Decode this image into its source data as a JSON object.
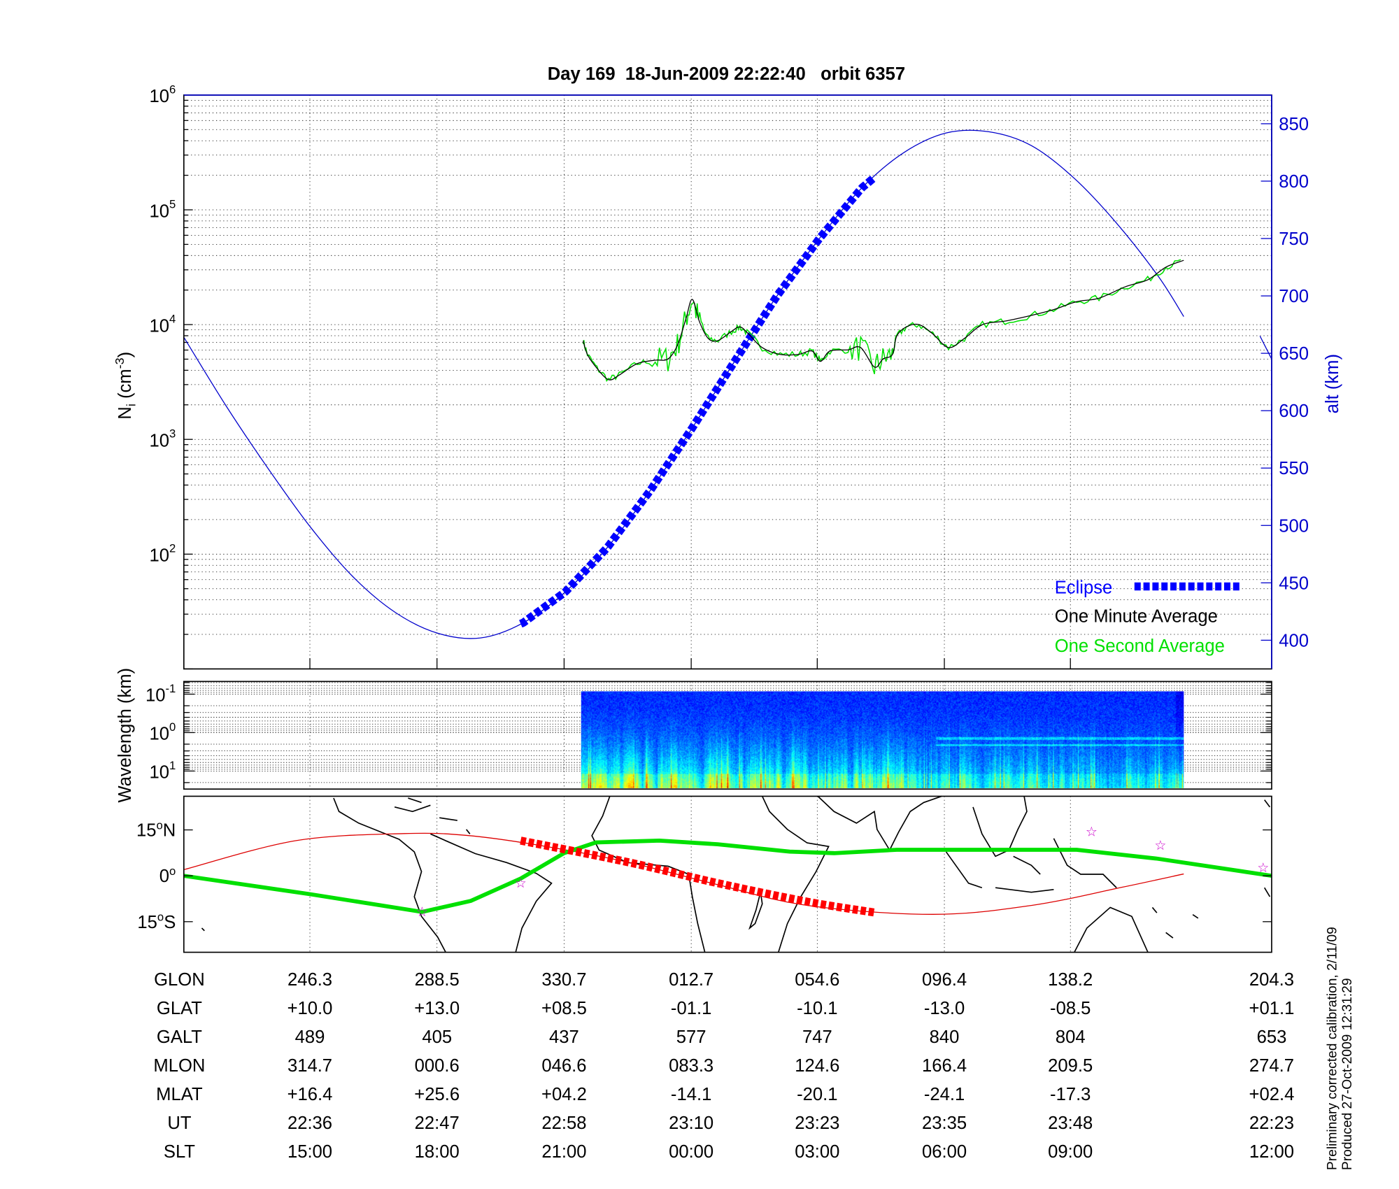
{
  "title": "Day 169  18-Jun-2009 22:22:40   orbit 6357",
  "side_notes": [
    "Preliminary corrected calibration, 2/11/09",
    "Produced 27-Oct-2009 12:31:29"
  ],
  "colors": {
    "altitude": "#0000cc",
    "eclipse": "#0000ff",
    "one_minute": "#000000",
    "one_second": "#00e000",
    "track": "#00e000",
    "magnetic_equator": "#dd0000",
    "eclipse_map": "#ff0000",
    "stars": "#cc00cc"
  },
  "chart_data": [
    {
      "type": "line",
      "title": "Day 169  18-Jun-2009 22:22:40   orbit 6357",
      "xlabel": "",
      "x_units": "minutes from plot start (approx.)",
      "xlim": [
        0,
        102.7
      ],
      "ylabel": "N",
      "ylabel_sub": "i",
      "ylabel_rest": " (cm",
      "ylabel_sup": "-3",
      "ylabel_end": ")",
      "yscale": "log",
      "ylim_log10": [
        1,
        6
      ],
      "yticks": [
        {
          "base": "10",
          "exp": "6",
          "log": 6
        },
        {
          "base": "10",
          "exp": "5",
          "log": 5
        },
        {
          "base": "10",
          "exp": "4",
          "log": 4
        },
        {
          "base": "10",
          "exp": "3",
          "log": 3
        },
        {
          "base": "10",
          "exp": "2",
          "log": 2
        }
      ],
      "y2label": "alt (km)",
      "y2lim": [
        375,
        875
      ],
      "y2ticks": [
        "850",
        "800",
        "750",
        "700",
        "650",
        "600",
        "550",
        "500",
        "450",
        "400"
      ],
      "xticks_minutes": [
        11.9,
        23.9,
        35.9,
        47.9,
        59.8,
        71.8,
        83.7
      ],
      "grid": true,
      "legend": {
        "placement": "bottom-right",
        "entries": [
          "Eclipse",
          "One Minute Average",
          "One Second Average"
        ]
      },
      "series": [
        {
          "name": "altitude_km",
          "axis": "right",
          "points": [
            [
              0,
              664
            ],
            [
              4,
              604
            ],
            [
              8,
              549
            ],
            [
              12,
              498
            ],
            [
              16,
              455
            ],
            [
              20,
              424
            ],
            [
              24,
              406
            ],
            [
              28,
              402
            ],
            [
              32,
              415
            ],
            [
              36,
              442
            ],
            [
              40,
              481
            ],
            [
              44,
              530
            ],
            [
              48,
              585
            ],
            [
              52,
              643
            ],
            [
              56,
              700
            ],
            [
              60,
              750
            ],
            [
              64,
              794
            ],
            [
              68,
              825
            ],
            [
              72,
              842
            ],
            [
              76,
              843
            ],
            [
              80,
              831
            ],
            [
              84,
              803
            ],
            [
              88,
              764
            ],
            [
              92,
              717
            ],
            [
              94.4,
              682
            ]
          ]
        },
        {
          "name": "altitude_km_next_orbit",
          "axis": "right",
          "points": [
            [
              101.6,
              665
            ],
            [
              102.7,
              645
            ]
          ]
        },
        {
          "name": "Eclipse",
          "axis": "right",
          "range_minutes": [
            31.8,
            65.2
          ]
        },
        {
          "name": "One Minute Average",
          "axis": "left",
          "log10_values": [
            [
              37.7,
              3.86
            ],
            [
              38.1,
              3.74
            ],
            [
              39.0,
              3.62
            ],
            [
              40.1,
              3.52
            ],
            [
              41.1,
              3.56
            ],
            [
              42.8,
              3.66
            ],
            [
              44.5,
              3.69
            ],
            [
              45.7,
              3.7
            ],
            [
              46.6,
              3.82
            ],
            [
              47.4,
              4.05
            ],
            [
              48.0,
              4.22
            ],
            [
              48.7,
              4.02
            ],
            [
              49.5,
              3.88
            ],
            [
              50.4,
              3.86
            ],
            [
              51.7,
              3.94
            ],
            [
              52.5,
              3.98
            ],
            [
              53.3,
              3.92
            ],
            [
              54.6,
              3.8
            ],
            [
              56.3,
              3.74
            ],
            [
              58.0,
              3.74
            ],
            [
              59.3,
              3.77
            ],
            [
              60.1,
              3.68
            ],
            [
              61.0,
              3.77
            ],
            [
              62.7,
              3.78
            ],
            [
              63.9,
              3.8
            ],
            [
              65.2,
              3.63
            ],
            [
              66.0,
              3.7
            ],
            [
              66.9,
              3.74
            ],
            [
              67.3,
              3.9
            ],
            [
              68.2,
              3.98
            ],
            [
              69.4,
              4.0
            ],
            [
              70.7,
              3.92
            ],
            [
              72.2,
              3.8
            ],
            [
              73.7,
              3.88
            ],
            [
              75.4,
              4.0
            ],
            [
              77.5,
              4.03
            ],
            [
              80.0,
              4.08
            ],
            [
              82.1,
              4.13
            ],
            [
              84.3,
              4.2
            ],
            [
              86.4,
              4.23
            ],
            [
              88.9,
              4.33
            ],
            [
              91.0,
              4.39
            ],
            [
              92.7,
              4.5
            ],
            [
              94.4,
              4.56
            ]
          ]
        },
        {
          "name": "One Second Average",
          "axis": "left",
          "noise_log10": 0.06
        }
      ]
    },
    {
      "type": "heatmap",
      "ylabel": "Wavelength (km)",
      "yscale": "log",
      "yticks": [
        {
          "base": "10",
          "exp": "-1",
          "log": -1
        },
        {
          "base": "10",
          "exp": "0",
          "log": 0
        },
        {
          "base": "10",
          "exp": "1",
          "log": 1
        }
      ],
      "ylim_log10": [
        -1.33,
        1.47
      ],
      "x_range_minutes": [
        37.5,
        94.4
      ],
      "colormap": "jet"
    },
    {
      "type": "line",
      "name": "map",
      "yticks": [
        {
          "label": "15",
          "unit": "o",
          "suffix": "N",
          "lat": 15
        },
        {
          "label": "0",
          "unit": "o",
          "suffix": "",
          "lat": 0
        },
        {
          "label": "15",
          "unit": "o",
          "suffix": "S",
          "lat": -15
        }
      ],
      "ylim_lat": [
        -25,
        26
      ],
      "series": [
        {
          "name": "satellite_track",
          "points": [
            [
              0,
              0
            ],
            [
              11.9,
              -6
            ],
            [
              22.5,
              -11.8
            ],
            [
              27.1,
              -8.2
            ],
            [
              31.8,
              -0.9
            ],
            [
              35.9,
              7.4
            ],
            [
              38.9,
              10.9
            ],
            [
              44.9,
              11.5
            ],
            [
              50.4,
              10.3
            ],
            [
              57.2,
              7.9
            ],
            [
              61.4,
              7.4
            ],
            [
              67.3,
              8.5
            ],
            [
              72.4,
              8.5
            ],
            [
              84.3,
              8.5
            ],
            [
              91.9,
              5.6
            ],
            [
              102.7,
              0
            ]
          ]
        },
        {
          "name": "magnetic_equator",
          "points": [
            [
              0,
              2
            ],
            [
              10.6,
              11.5
            ],
            [
              20.8,
              13.8
            ],
            [
              26.7,
              13.2
            ],
            [
              33.5,
              10
            ],
            [
              42,
              4.4
            ],
            [
              50.4,
              -2.9
            ],
            [
              58.9,
              -9.7
            ],
            [
              70.7,
              -12.6
            ],
            [
              80,
              -9.7
            ],
            [
              88.5,
              -3.8
            ],
            [
              94.4,
              0.6
            ]
          ]
        },
        {
          "name": "eclipse_track",
          "points": [
            [
              31.8,
              11.5
            ],
            [
              42,
              4.4
            ],
            [
              50.4,
              -2.4
            ],
            [
              58.9,
              -8.5
            ],
            [
              65.2,
              -12
            ]
          ]
        },
        {
          "name": "stars",
          "points": [
            [
              22.5,
              -11.8
            ],
            [
              31.8,
              -2.4
            ],
            [
              85.7,
              14.4
            ],
            [
              92.2,
              10
            ],
            [
              101.9,
              2.6
            ]
          ]
        }
      ]
    }
  ],
  "table": {
    "rows": [
      {
        "label": "GLON",
        "values": [
          "246.3",
          "288.5",
          "330.7",
          "012.7",
          "054.6",
          "096.4",
          "138.2",
          "204.3"
        ]
      },
      {
        "label": "GLAT",
        "values": [
          "+10.0",
          "+13.0",
          "+08.5",
          "-01.1",
          "-10.1",
          "-13.0",
          "-08.5",
          "+01.1"
        ]
      },
      {
        "label": "GALT",
        "values": [
          "489",
          "405",
          "437",
          "577",
          "747",
          "840",
          "804",
          "653"
        ]
      },
      {
        "label": "MLON",
        "values": [
          "314.7",
          "000.6",
          "046.6",
          "083.3",
          "124.6",
          "166.4",
          "209.5",
          "274.7"
        ]
      },
      {
        "label": "MLAT",
        "values": [
          "+16.4",
          "+25.6",
          "+04.2",
          "-14.1",
          "-20.1",
          "-24.1",
          "-17.3",
          "+02.4"
        ]
      },
      {
        "label": "UT",
        "values": [
          "22:36",
          "22:47",
          "22:58",
          "23:10",
          "23:23",
          "23:35",
          "23:48",
          "22:23"
        ]
      },
      {
        "label": "SLT",
        "values": [
          "15:00",
          "18:00",
          "21:00",
          "00:00",
          "03:00",
          "06:00",
          "09:00",
          "12:00"
        ]
      }
    ]
  }
}
